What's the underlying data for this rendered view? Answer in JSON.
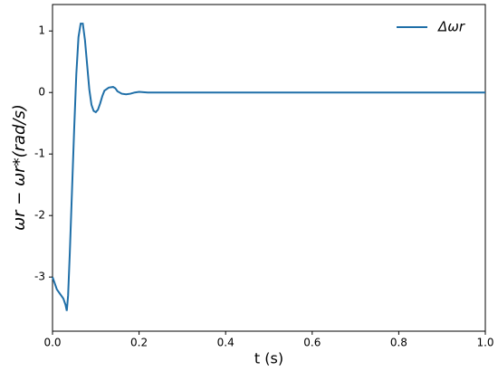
{
  "chart_data": {
    "type": "line",
    "xlabel": "t (s)",
    "ylabel": "ωr − ωr*(rad/s)",
    "x": [
      0,
      0.005,
      0.01,
      0.015,
      0.02,
      0.025,
      0.03,
      0.033,
      0.036,
      0.04,
      0.045,
      0.05,
      0.055,
      0.06,
      0.065,
      0.07,
      0.075,
      0.08,
      0.085,
      0.09,
      0.095,
      0.1,
      0.105,
      0.11,
      0.115,
      0.12,
      0.13,
      0.14,
      0.145,
      0.15,
      0.16,
      0.17,
      0.18,
      0.19,
      0.2,
      0.22,
      0.25,
      0.3,
      0.5,
      1.0
    ],
    "series": [
      {
        "name": "Δωr",
        "color": "#1f6fa8",
        "values": [
          -3.0,
          -3.1,
          -3.2,
          -3.25,
          -3.3,
          -3.35,
          -3.45,
          -3.55,
          -3.3,
          -2.6,
          -1.6,
          -0.6,
          0.3,
          0.9,
          1.12,
          1.12,
          0.85,
          0.45,
          0.05,
          -0.2,
          -0.3,
          -0.32,
          -0.28,
          -0.18,
          -0.06,
          0.03,
          0.08,
          0.09,
          0.07,
          0.02,
          -0.02,
          -0.03,
          -0.02,
          0.0,
          0.01,
          0.0,
          0,
          0,
          0,
          0
        ]
      }
    ],
    "xlim": [
      0,
      1.0
    ],
    "ylim": [
      -3.88,
      1.43
    ],
    "xticks": [
      {
        "value": 0,
        "label": "0.0"
      },
      0.2,
      0.4,
      0.6,
      0.8,
      {
        "value": 1.0,
        "label": "1.0"
      }
    ],
    "yticks": [
      -3,
      -2,
      -1,
      0,
      1
    ],
    "grid": false,
    "legend": "upper-right"
  }
}
